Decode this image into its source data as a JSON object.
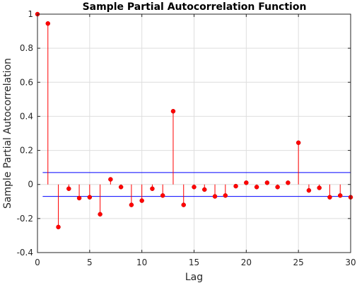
{
  "chart_data": {
    "type": "stem",
    "title": "Sample Partial Autocorrelation Function",
    "xlabel": "Lag",
    "ylabel": "Sample Partial Autocorrelation",
    "xlim": [
      0,
      30
    ],
    "ylim": [
      -0.4,
      1
    ],
    "xticks": [
      0,
      5,
      10,
      15,
      20,
      25,
      30
    ],
    "yticks": [
      -0.4,
      -0.2,
      0,
      0.2,
      0.4,
      0.6,
      0.8,
      1
    ],
    "ytick_labels": [
      "-0.4",
      "-0.2",
      "0",
      "0.2",
      "0.4",
      "0.6",
      "0.8",
      "1"
    ],
    "grid": true,
    "series": [
      {
        "lags": [
          0,
          1,
          2,
          3,
          4,
          5,
          6,
          7,
          8,
          9,
          10,
          11,
          12,
          13,
          14,
          15,
          16,
          17,
          18,
          19,
          20,
          21,
          22,
          23,
          24,
          25,
          26,
          27,
          28,
          29,
          30
        ],
        "values": [
          1.0,
          0.945,
          -0.25,
          -0.025,
          -0.08,
          -0.075,
          -0.175,
          0.03,
          -0.015,
          -0.12,
          -0.095,
          -0.025,
          -0.065,
          0.43,
          -0.12,
          -0.015,
          -0.03,
          -0.07,
          -0.065,
          -0.01,
          0.01,
          -0.015,
          0.01,
          -0.015,
          0.01,
          0.245,
          -0.035,
          -0.02,
          -0.075,
          -0.065,
          -0.075
        ],
        "color": "#ff0000"
      }
    ],
    "confidence_bounds": {
      "upper": 0.07,
      "lower": -0.07,
      "color": "#0000ff"
    }
  }
}
